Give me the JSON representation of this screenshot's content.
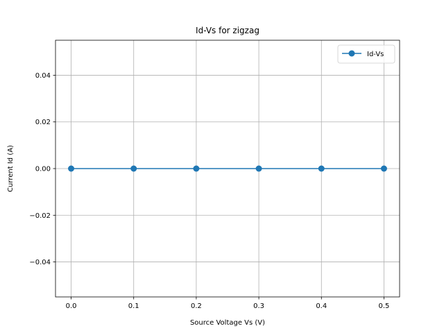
{
  "chart_data": {
    "type": "line",
    "title": "Id-Vs for zigzag",
    "xlabel": "Source Voltage Vs (V)",
    "ylabel": "Current Id (A)",
    "xlim": [
      -0.025,
      0.525
    ],
    "ylim": [
      -0.055,
      0.055
    ],
    "x_ticks": [
      0.0,
      0.1,
      0.2,
      0.3,
      0.4,
      0.5
    ],
    "x_tick_labels": [
      "0.0",
      "0.1",
      "0.2",
      "0.3",
      "0.4",
      "0.5"
    ],
    "y_ticks": [
      -0.04,
      -0.02,
      0.0,
      0.02,
      0.04
    ],
    "y_tick_labels": [
      "−0.04",
      "−0.02",
      "0.00",
      "0.02",
      "0.04"
    ],
    "grid": true,
    "legend_position": "top-right",
    "series": [
      {
        "name": "Id-Vs",
        "color": "#1f77b4",
        "marker": "circle",
        "x": [
          0.0,
          0.1,
          0.2,
          0.3,
          0.4,
          0.5
        ],
        "y": [
          0.0,
          0.0,
          0.0,
          0.0,
          0.0,
          0.0
        ]
      }
    ]
  }
}
